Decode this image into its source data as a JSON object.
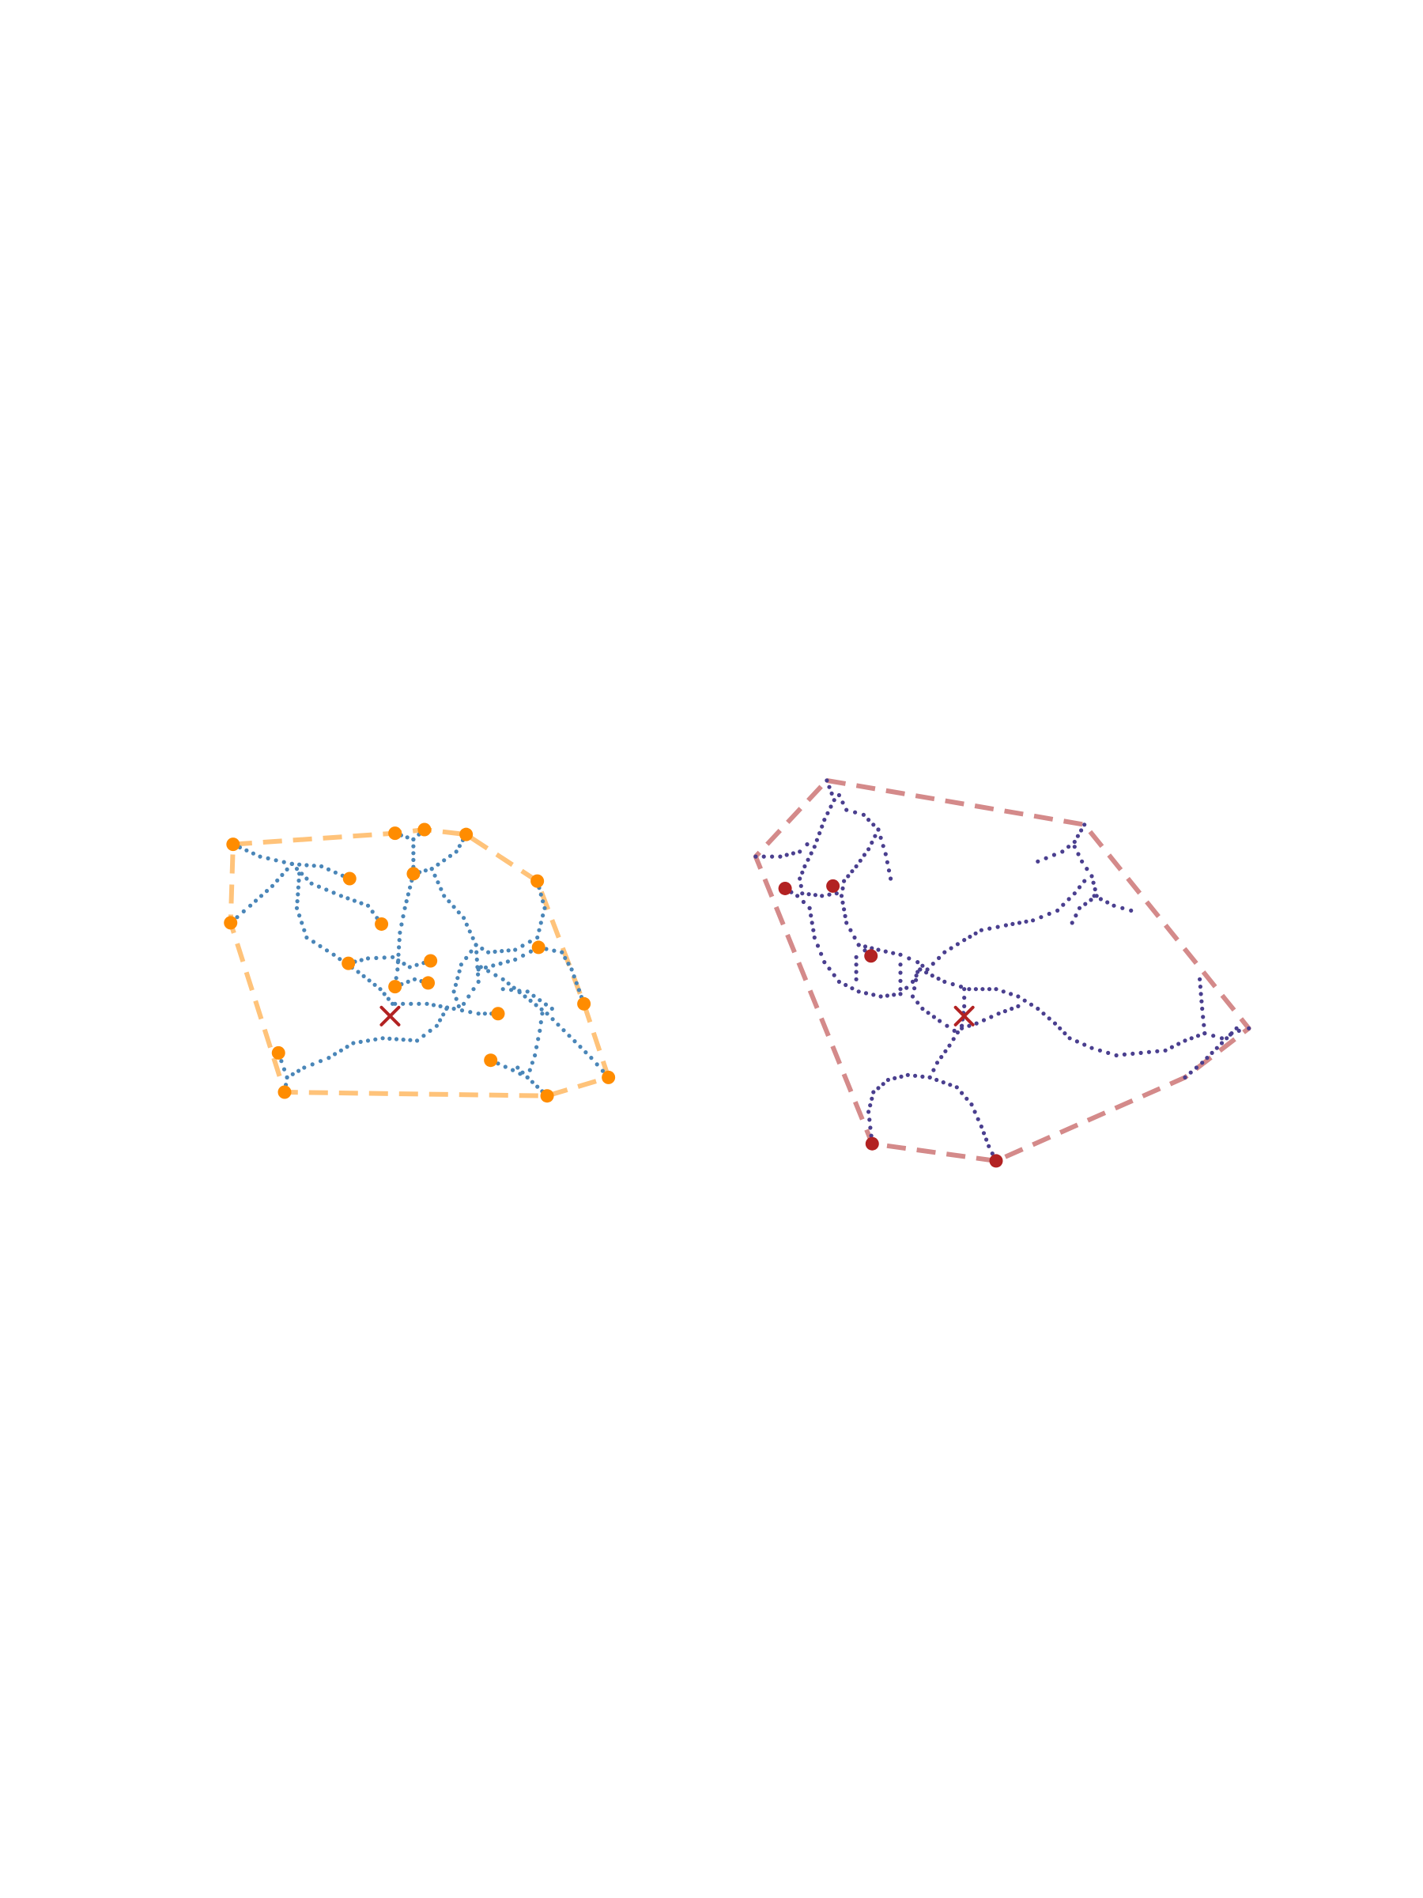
{
  "figure": {
    "background": "#ffffff",
    "panels": [
      {
        "id": "left",
        "network_color": "#4a86b8",
        "endpoint_color": "#ff8c00",
        "hull_color": "#ffc37a",
        "centroid_color": "#b22222",
        "centroid": [
          318,
          828
        ],
        "hull": [
          [
            190,
            688
          ],
          [
            322,
            679
          ],
          [
            346,
            676
          ],
          [
            380,
            680
          ],
          [
            438,
            718
          ],
          [
            476,
            818
          ],
          [
            496,
            878
          ],
          [
            446,
            893
          ],
          [
            232,
            890
          ],
          [
            188,
            752
          ]
        ],
        "endpoints": [
          [
            190,
            688
          ],
          [
            322,
            679
          ],
          [
            346,
            676
          ],
          [
            380,
            680
          ],
          [
            438,
            718
          ],
          [
            476,
            818
          ],
          [
            496,
            878
          ],
          [
            446,
            893
          ],
          [
            232,
            890
          ],
          [
            227,
            858
          ],
          [
            188,
            752
          ],
          [
            285,
            716
          ],
          [
            311,
            753
          ],
          [
            337,
            712
          ],
          [
            284,
            785
          ],
          [
            322,
            804
          ],
          [
            351,
            783
          ],
          [
            349,
            801
          ],
          [
            439,
            772
          ],
          [
            406,
            826
          ],
          [
            400,
            864
          ]
        ],
        "paths": [
          [
            [
              190,
              688
            ],
            [
              212,
              698
            ],
            [
              238,
              704
            ],
            [
              262,
              706
            ],
            [
              285,
              716
            ]
          ],
          [
            [
              238,
              704
            ],
            [
              222,
              722
            ],
            [
              204,
              738
            ],
            [
              188,
              752
            ]
          ],
          [
            [
              238,
              704
            ],
            [
              254,
              720
            ],
            [
              278,
              730
            ],
            [
              300,
              738
            ],
            [
              311,
              753
            ]
          ],
          [
            [
              244,
              712
            ],
            [
              242,
              740
            ],
            [
              250,
              764
            ],
            [
              272,
              778
            ],
            [
              292,
              792
            ],
            [
              310,
              806
            ],
            [
              320,
              818
            ]
          ],
          [
            [
              322,
              679
            ],
            [
              337,
              684
            ],
            [
              337,
              712
            ]
          ],
          [
            [
              346,
              676
            ],
            [
              337,
              684
            ]
          ],
          [
            [
              337,
              712
            ],
            [
              330,
              740
            ],
            [
              326,
              760
            ],
            [
              324,
              790
            ],
            [
              322,
              804
            ]
          ],
          [
            [
              380,
              680
            ],
            [
              372,
              694
            ],
            [
              352,
              708
            ],
            [
              337,
              712
            ]
          ],
          [
            [
              352,
              708
            ],
            [
              362,
              730
            ],
            [
              378,
              748
            ],
            [
              388,
              770
            ],
            [
              390,
              800
            ],
            [
              378,
              818
            ]
          ],
          [
            [
              284,
              785
            ],
            [
              300,
              781
            ],
            [
              320,
              780
            ],
            [
              334,
              788
            ],
            [
              351,
              783
            ]
          ],
          [
            [
              322,
              804
            ],
            [
              338,
              798
            ],
            [
              349,
              801
            ]
          ],
          [
            [
              438,
              718
            ],
            [
              444,
              740
            ],
            [
              438,
              764
            ],
            [
              420,
              774
            ],
            [
              398,
              776
            ],
            [
              388,
              770
            ]
          ],
          [
            [
              388,
              770
            ],
            [
              376,
              786
            ],
            [
              370,
              808
            ],
            [
              374,
              820
            ]
          ],
          [
            [
              390,
              790
            ],
            [
              420,
              782
            ],
            [
              439,
              772
            ],
            [
              458,
              776
            ],
            [
              466,
              790
            ],
            [
              476,
              818
            ]
          ],
          [
            [
              392,
              788
            ],
            [
              410,
              798
            ],
            [
              428,
              812
            ],
            [
              446,
              826
            ],
            [
              464,
              844
            ],
            [
              482,
              862
            ],
            [
              496,
              878
            ]
          ],
          [
            [
              410,
              806
            ],
            [
              430,
              808
            ],
            [
              450,
              822
            ]
          ],
          [
            [
              322,
              818
            ],
            [
              348,
              818
            ],
            [
              370,
              822
            ],
            [
              390,
              826
            ],
            [
              406,
              826
            ]
          ],
          [
            [
              232,
              890
            ],
            [
              234,
              878
            ],
            [
              248,
              870
            ],
            [
              268,
              862
            ],
            [
              288,
              850
            ],
            [
              312,
              846
            ],
            [
              340,
              848
            ],
            [
              356,
              836
            ],
            [
              364,
              822
            ]
          ],
          [
            [
              227,
              858
            ],
            [
              234,
              878
            ]
          ],
          [
            [
              446,
              893
            ],
            [
              430,
              878
            ],
            [
              422,
              870
            ]
          ],
          [
            [
              400,
              864
            ],
            [
              418,
              872
            ],
            [
              430,
              878
            ],
            [
              436,
              860
            ],
            [
              440,
              840
            ],
            [
              442,
              826
            ]
          ]
        ]
      },
      {
        "id": "right",
        "network_color": "#4a3f8f",
        "endpoint_color": "#b22222",
        "hull_color": "#d48a8a",
        "centroid_color": "#b22222",
        "centroid": [
          786,
          828
        ],
        "hull": [
          [
            674,
            636
          ],
          [
            884,
            672
          ],
          [
            1018,
            838
          ],
          [
            966,
            878
          ],
          [
            812,
            946
          ],
          [
            711,
            932
          ],
          [
            616,
            698
          ]
        ],
        "endpoints": [
          [
            640,
            724
          ],
          [
            679,
            722
          ],
          [
            710,
            779
          ],
          [
            711,
            932
          ],
          [
            812,
            946
          ]
        ],
        "paths": [
          [
            [
              674,
              636
            ],
            [
              680,
              652
            ],
            [
              672,
              668
            ],
            [
              664,
              690
            ],
            [
              656,
              706
            ],
            [
              652,
              716
            ],
            [
              654,
              728
            ],
            [
              670,
              730
            ],
            [
              682,
              728
            ],
            [
              679,
              722
            ]
          ],
          [
            [
              616,
              698
            ],
            [
              636,
              698
            ],
            [
              652,
              694
            ],
            [
              658,
              688
            ]
          ],
          [
            [
              640,
              724
            ],
            [
              650,
              730
            ],
            [
              660,
              740
            ]
          ],
          [
            [
              684,
              648
            ],
            [
              690,
              660
            ],
            [
              704,
              664
            ],
            [
              716,
              676
            ],
            [
              722,
              696
            ],
            [
              726,
              716
            ]
          ],
          [
            [
              716,
              676
            ],
            [
              708,
              692
            ],
            [
              698,
              706
            ],
            [
              688,
              718
            ],
            [
              686,
              730
            ],
            [
              690,
              752
            ],
            [
              700,
              770
            ],
            [
              710,
              779
            ]
          ],
          [
            [
              660,
              740
            ],
            [
              664,
              764
            ],
            [
              672,
              784
            ],
            [
              684,
              800
            ],
            [
              700,
              808
            ],
            [
              718,
              812
            ],
            [
              734,
              810
            ],
            [
              744,
              800
            ],
            [
              750,
              790
            ]
          ],
          [
            [
              700,
              770
            ],
            [
              716,
              774
            ],
            [
              734,
              778
            ],
            [
              748,
              784
            ],
            [
              756,
              790
            ],
            [
              770,
              776
            ],
            [
              786,
              766
            ],
            [
              800,
              758
            ],
            [
              820,
              754
            ],
            [
              842,
              750
            ],
            [
              862,
              742
            ],
            [
              876,
              728
            ],
            [
              884,
              718
            ]
          ],
          [
            [
              698,
              780
            ],
            [
              698,
              798
            ]
          ],
          [
            [
              734,
              786
            ],
            [
              734,
              806
            ]
          ],
          [
            [
              748,
              792
            ],
            [
              744,
              812
            ],
            [
              752,
              822
            ],
            [
              766,
              832
            ],
            [
              778,
              840
            ],
            [
              796,
              834
            ],
            [
              814,
              826
            ],
            [
              830,
              820
            ]
          ],
          [
            [
              750,
              790
            ],
            [
              770,
              800
            ],
            [
              790,
              806
            ],
            [
              812,
              806
            ],
            [
              830,
              812
            ],
            [
              846,
              822
            ],
            [
              860,
              834
            ],
            [
              872,
              846
            ],
            [
              890,
              854
            ],
            [
              910,
              860
            ],
            [
              930,
              858
            ],
            [
              950,
              856
            ],
            [
              966,
              848
            ],
            [
              982,
              842
            ],
            [
              996,
              846
            ],
            [
              1010,
              840
            ],
            [
              1018,
              838
            ]
          ],
          [
            [
              786,
              806
            ],
            [
              786,
              820
            ],
            [
              784,
              836
            ]
          ],
          [
            [
              784,
              836
            ],
            [
              774,
              852
            ],
            [
              764,
              866
            ],
            [
              758,
              878
            ],
            [
              740,
              876
            ],
            [
              724,
              880
            ],
            [
              712,
              890
            ],
            [
              708,
              906
            ],
            [
              711,
              932
            ]
          ],
          [
            [
              758,
              878
            ],
            [
              780,
              886
            ],
            [
              792,
              900
            ],
            [
              800,
              918
            ],
            [
              806,
              934
            ],
            [
              812,
              946
            ]
          ],
          [
            [
              884,
              672
            ],
            [
              876,
              686
            ],
            [
              866,
              694
            ],
            [
              846,
              702
            ]
          ],
          [
            [
              876,
              690
            ],
            [
              882,
              702
            ],
            [
              890,
              714
            ],
            [
              894,
              730
            ],
            [
              880,
              740
            ],
            [
              874,
              752
            ]
          ],
          [
            [
              892,
              730
            ],
            [
              908,
              738
            ],
            [
              922,
              742
            ]
          ],
          [
            [
              978,
              798
            ],
            [
              980,
              822
            ],
            [
              982,
              842
            ]
          ],
          [
            [
              1008,
              838
            ],
            [
              992,
              854
            ],
            [
              980,
              866
            ],
            [
              966,
              878
            ]
          ]
        ]
      }
    ]
  }
}
